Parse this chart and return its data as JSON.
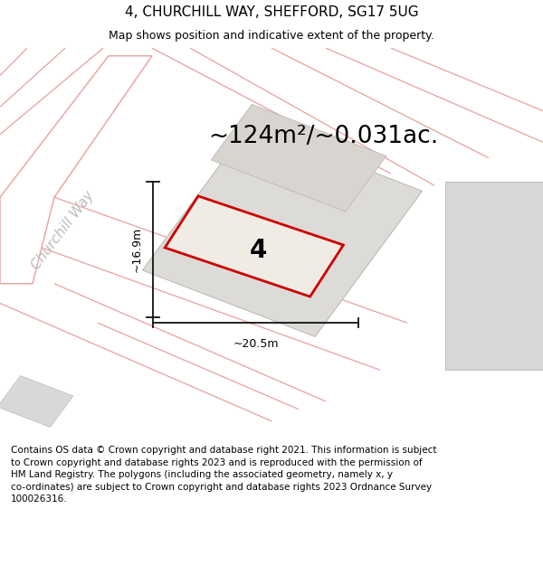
{
  "title": "4, CHURCHILL WAY, SHEFFORD, SG17 5UG",
  "subtitle": "Map shows position and indicative extent of the property.",
  "footer_lines": [
    "Contains OS data © Crown copyright and database right 2021. This information is subject",
    "to Crown copyright and database rights 2023 and is reproduced with the permission of",
    "HM Land Registry. The polygons (including the associated geometry, namely x, y",
    "co-ordinates) are subject to Crown copyright and database rights 2023 Ordnance Survey",
    "100026316."
  ],
  "area_label": "~124m²/~0.031ac.",
  "width_label": "~20.5m",
  "height_label": "~16.9m",
  "plot_number": "4",
  "street_label": "Churchill Way",
  "highlight_color": "#cc0000",
  "dim_color": "#111111",
  "street_text_color": "#bbbbbb",
  "title_fontsize": 11,
  "subtitle_fontsize": 9,
  "footer_fontsize": 7.5,
  "area_fontsize": 19,
  "label_fontsize": 9,
  "street_fontsize": 11,
  "plot_number_fontsize": 20
}
